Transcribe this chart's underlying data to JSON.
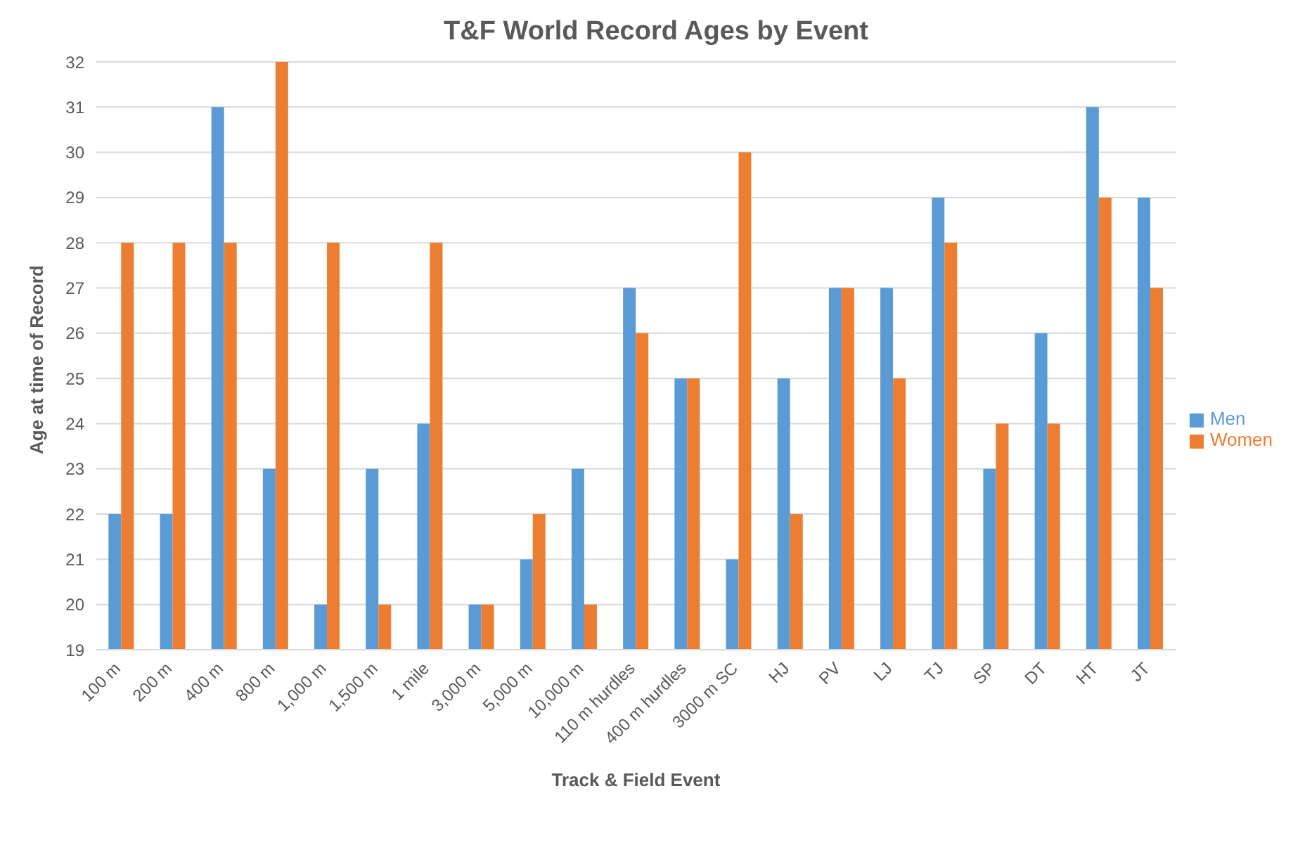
{
  "chart_data": {
    "type": "bar",
    "title": "T&F World Record Ages by Event",
    "xlabel": "Track & Field Event",
    "ylabel": "Age at time of Record",
    "categories": [
      "100 m",
      "200 m",
      "400 m",
      "800 m",
      "1,000 m",
      "1,500 m",
      "1 mile",
      "3,000 m",
      "5,000 m",
      "10,000 m",
      "110 m hurdles",
      "400 m hurdles",
      "3000 m SC",
      "HJ",
      "PV",
      "LJ",
      "TJ",
      "SP",
      "DT",
      "HT",
      "JT"
    ],
    "series": [
      {
        "name": "Men",
        "color": "#5b9bd5",
        "values": [
          22,
          22,
          31,
          23,
          20,
          23,
          24,
          20,
          21,
          23,
          27,
          25,
          21,
          25,
          27,
          27,
          29,
          23,
          26,
          31,
          29
        ]
      },
      {
        "name": "Women",
        "color": "#ed7d31",
        "values": [
          28,
          28,
          28,
          32,
          28,
          20,
          28,
          20,
          22,
          20,
          26,
          25,
          30,
          22,
          27,
          25,
          28,
          24,
          24,
          29,
          27
        ]
      }
    ],
    "ylim": [
      19,
      32
    ],
    "yticks": [
      19,
      20,
      21,
      22,
      23,
      24,
      25,
      26,
      27,
      28,
      29,
      30,
      31,
      32
    ],
    "grid": "y",
    "legend": "right"
  }
}
